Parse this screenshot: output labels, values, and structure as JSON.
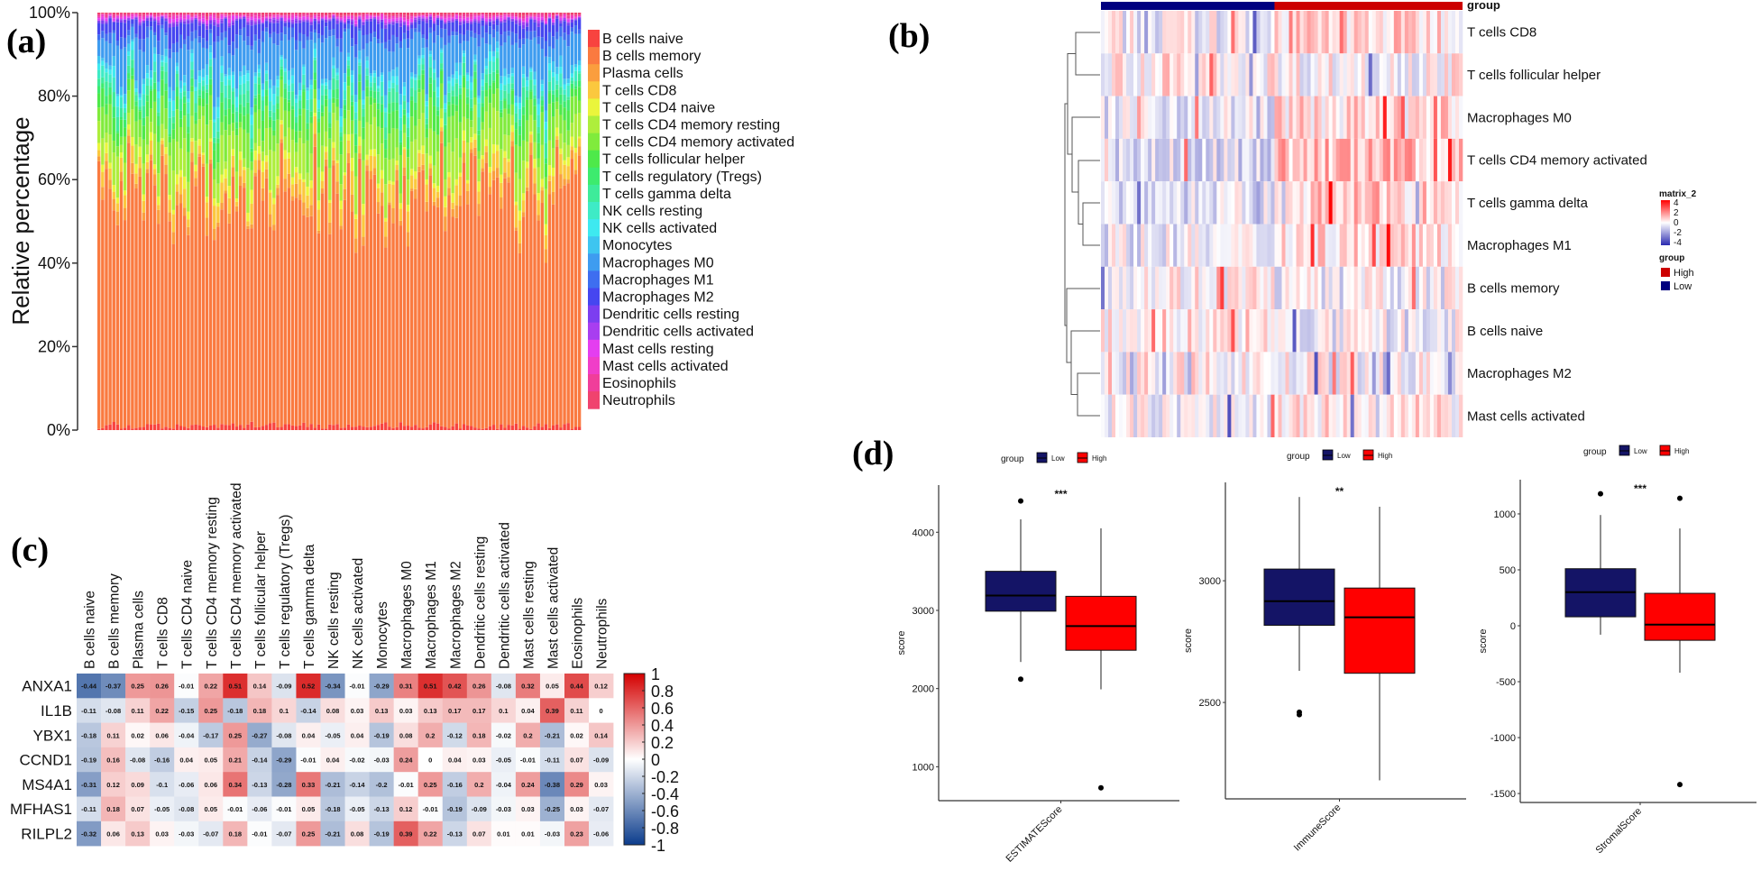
{
  "panel_labels": {
    "a": "(a)",
    "b": "(b)",
    "c": "(c)",
    "d": "(d)"
  },
  "chart_data": [
    {
      "type": "bar",
      "stacked": true,
      "panel": "(a)",
      "ylabel": "Relative percentage",
      "yticks": [
        "0%",
        "20%",
        "40%",
        "60%",
        "80%",
        "100%"
      ],
      "ylim": [
        0,
        100
      ],
      "legend_position": "right",
      "series": [
        {
          "name": "B cells naive",
          "color": "#F8433F",
          "mean_percent": 1
        },
        {
          "name": "B cells memory",
          "color": "#FA7A40",
          "mean_percent": 57
        },
        {
          "name": "Plasma cells",
          "color": "#FA9E3E",
          "mean_percent": 2
        },
        {
          "name": "T cells CD8",
          "color": "#FBC83E",
          "mean_percent": 3
        },
        {
          "name": "T cells CD4 naive",
          "color": "#EAF53C",
          "mean_percent": 1.5
        },
        {
          "name": "T cells CD4 memory resting",
          "color": "#AEEE3C",
          "mean_percent": 6
        },
        {
          "name": "T cells CD4 memory activated",
          "color": "#80EB3C",
          "mean_percent": 5
        },
        {
          "name": "T cells follicular helper",
          "color": "#4EE94A",
          "mean_percent": 3
        },
        {
          "name": "T cells regulatory (Tregs)",
          "color": "#3DEB6E",
          "mean_percent": 1.5
        },
        {
          "name": "T cells gamma delta",
          "color": "#3EEB9A",
          "mean_percent": 2
        },
        {
          "name": "NK cells resting",
          "color": "#3EEBC6",
          "mean_percent": 2
        },
        {
          "name": "NK cells activated",
          "color": "#3EE9F0",
          "mean_percent": 1.5
        },
        {
          "name": "Monocytes",
          "color": "#3EC5F0",
          "mean_percent": 1.5
        },
        {
          "name": "Macrophages M0",
          "color": "#3E9CF0",
          "mean_percent": 7
        },
        {
          "name": "Macrophages M1",
          "color": "#3E6EF0",
          "mean_percent": 2
        },
        {
          "name": "Macrophages M2",
          "color": "#4646F0",
          "mean_percent": 2.5
        },
        {
          "name": "Dendritic cells resting",
          "color": "#7C3EF0",
          "mean_percent": 0.5
        },
        {
          "name": "Dendritic cells activated",
          "color": "#A83EF0",
          "mean_percent": 0.3
        },
        {
          "name": "Mast cells resting",
          "color": "#E43EF0",
          "mean_percent": 0.5
        },
        {
          "name": "Mast cells activated",
          "color": "#F03EC8",
          "mean_percent": 0.4
        },
        {
          "name": "Eosinophils",
          "color": "#F03E9A",
          "mean_percent": 0.4
        },
        {
          "name": "Neutrophils",
          "color": "#F0436E",
          "mean_percent": 0.4
        }
      ]
    },
    {
      "type": "heatmap",
      "panel": "(b)",
      "annotation_label": "group",
      "legend_title": "matrix_2",
      "legend_ticks": [
        "4",
        "2",
        "0",
        "-2",
        "-4"
      ],
      "value_range": [
        -4,
        4
      ],
      "colors": {
        "high": "#FF0000",
        "mid": "#FFFFFF",
        "low": "#2A2AB0"
      },
      "groups": [
        {
          "name": "High",
          "color": "#CC0000"
        },
        {
          "name": "Low",
          "color": "#00007F"
        }
      ],
      "rows": [
        {
          "name": "T cells CD8",
          "mean_low": -0.2,
          "mean_high": 0.6
        },
        {
          "name": "T cells follicular helper",
          "mean_low": 0.3,
          "mean_high": 0.1
        },
        {
          "name": "Macrophages M0",
          "mean_low": -0.3,
          "mean_high": 0.5
        },
        {
          "name": "T cells CD4 memory activated",
          "mean_low": -0.6,
          "mean_high": 1.0
        },
        {
          "name": "T cells gamma delta",
          "mean_low": -0.5,
          "mean_high": 0.8
        },
        {
          "name": "Macrophages M1",
          "mean_low": -0.3,
          "mean_high": 0.6
        },
        {
          "name": "B cells memory",
          "mean_low": 0.2,
          "mean_high": -0.2
        },
        {
          "name": "B cells naive",
          "mean_low": 0.4,
          "mean_high": -0.3
        },
        {
          "name": "Macrophages M2",
          "mean_low": 0.1,
          "mean_high": -0.1
        },
        {
          "name": "Mast cells activated",
          "mean_low": -0.2,
          "mean_high": 0.3
        }
      ]
    },
    {
      "type": "heatmap",
      "panel": "(c)",
      "value_range": [
        -1,
        1
      ],
      "colors": {
        "high": "#D40000",
        "mid": "#FFFFFF",
        "low": "#0B3C8C"
      },
      "colorbar_ticks": [
        "1",
        "0.8",
        "0.6",
        "0.4",
        "0.2",
        "0",
        "-0.2",
        "-0.4",
        "-0.6",
        "-0.8",
        "-1"
      ],
      "columns": [
        "B cells naive",
        "B cells memory",
        "Plasma cells",
        "T cells CD8",
        "T cells CD4 naive",
        "T cells CD4 memory resting",
        "T cells CD4 memory activated",
        "T cells follicular helper",
        "T cells regulatory (Tregs)",
        "T cells gamma delta",
        "NK cells resting",
        "NK cells activated",
        "Monocytes",
        "Macrophages M0",
        "Macrophages M1",
        "Macrophages M2",
        "Dendritic cells resting",
        "Dendritic cells activated",
        "Mast cells resting",
        "Mast cells activated",
        "Eosinophils",
        "Neutrophils"
      ],
      "rows": [
        "ANXA1",
        "IL1B",
        "YBX1",
        "CCND1",
        "MS4A1",
        "MFHAS1",
        "RILPL2"
      ],
      "values": [
        [
          -0.44,
          -0.37,
          0.25,
          0.26,
          -0.01,
          0.22,
          0.51,
          0.14,
          -0.09,
          0.52,
          -0.34,
          -0.01,
          -0.29,
          0.31,
          0.51,
          0.42,
          0.26,
          -0.08,
          0.32,
          0.05,
          0.44,
          0.12
        ],
        [
          -0.11,
          -0.08,
          0.11,
          0.22,
          -0.15,
          0.25,
          -0.18,
          0.18,
          0.1,
          -0.14,
          0.08,
          0.03,
          0.13,
          0.03,
          0.13,
          0.17,
          0.17,
          0.1,
          0.04,
          0.39,
          0.11,
          0
        ],
        [
          -0.18,
          0.11,
          0.02,
          0.06,
          -0.04,
          -0.17,
          0.25,
          -0.27,
          -0.08,
          0.04,
          -0.05,
          0.04,
          -0.19,
          0.08,
          0.2,
          -0.12,
          0.18,
          -0.02,
          0.2,
          -0.21,
          0.02,
          0.14
        ],
        [
          -0.19,
          0.16,
          -0.08,
          -0.16,
          0.04,
          0.05,
          0.21,
          -0.14,
          -0.29,
          -0.01,
          0.04,
          -0.02,
          -0.03,
          0.24,
          0,
          0.04,
          0.03,
          -0.05,
          -0.01,
          -0.11,
          0.07,
          -0.09
        ],
        [
          -0.31,
          0.12,
          0.09,
          -0.1,
          -0.06,
          0.06,
          0.34,
          -0.13,
          -0.28,
          0.33,
          -0.21,
          -0.14,
          -0.2,
          -0.01,
          0.25,
          -0.16,
          0.2,
          -0.04,
          0.24,
          -0.38,
          0.29,
          0.03
        ],
        [
          -0.11,
          0.18,
          0.07,
          -0.05,
          -0.08,
          0.05,
          -0.01,
          -0.06,
          -0.01,
          0.05,
          -0.18,
          -0.05,
          -0.13,
          0.12,
          -0.01,
          -0.19,
          -0.09,
          -0.03,
          0.03,
          -0.25,
          0.03,
          -0.07
        ],
        [
          -0.32,
          0.06,
          0.13,
          0.03,
          -0.03,
          -0.07,
          0.18,
          -0.01,
          -0.07,
          0.25,
          -0.21,
          0.08,
          -0.19,
          0.39,
          0.22,
          -0.13,
          0.07,
          0.01,
          0.01,
          -0.03,
          0.23,
          -0.06
        ]
      ]
    },
    {
      "type": "box",
      "panel": "(d)",
      "legend_title": "group",
      "ylabel": "score",
      "groups": [
        {
          "name": "Low",
          "color": "#141466"
        },
        {
          "name": "High",
          "color": "#FF0000"
        }
      ],
      "plots": [
        {
          "category": "ESTIMATEScore",
          "significance": "***",
          "yticks": [
            1000,
            2000,
            3000,
            4000
          ],
          "ylim": [
            566,
            4603
          ],
          "boxes": [
            {
              "group": "Low",
              "min": 2340,
              "q1": 2990,
              "median": 3190,
              "q3": 3500,
              "max": 4165,
              "outliers": [
                4400,
                2120
              ]
            },
            {
              "group": "High",
              "min": 1990,
              "q1": 2490,
              "median": 2800,
              "q3": 3180,
              "max": 4050,
              "outliers": [
                730
              ]
            }
          ]
        },
        {
          "category": "ImmuneScore",
          "significance": "**",
          "yticks": [
            2500,
            3000
          ],
          "ylim": [
            2104,
            3404
          ],
          "boxes": [
            {
              "group": "Low",
              "min": 2630,
              "q1": 2817,
              "median": 2916,
              "q3": 3048,
              "max": 3344,
              "outliers": [
                2460,
                2450
              ]
            },
            {
              "group": "High",
              "min": 2180,
              "q1": 2620,
              "median": 2850,
              "q3": 2970,
              "max": 3304,
              "outliers": []
            }
          ]
        },
        {
          "category": "StromalScore",
          "significance": "***",
          "yticks": [
            -1500,
            -1000,
            -500,
            0,
            500,
            1000
          ],
          "ylim": [
            -1580,
            1306
          ],
          "boxes": [
            {
              "group": "Low",
              "min": -80,
              "q1": 80,
              "median": 300,
              "q3": 510,
              "max": 990,
              "outliers": [
                1180
              ]
            },
            {
              "group": "High",
              "min": -420,
              "q1": -130,
              "median": 10,
              "q3": 290,
              "max": 870,
              "outliers": [
                1140,
                -1420
              ]
            }
          ]
        }
      ]
    }
  ]
}
